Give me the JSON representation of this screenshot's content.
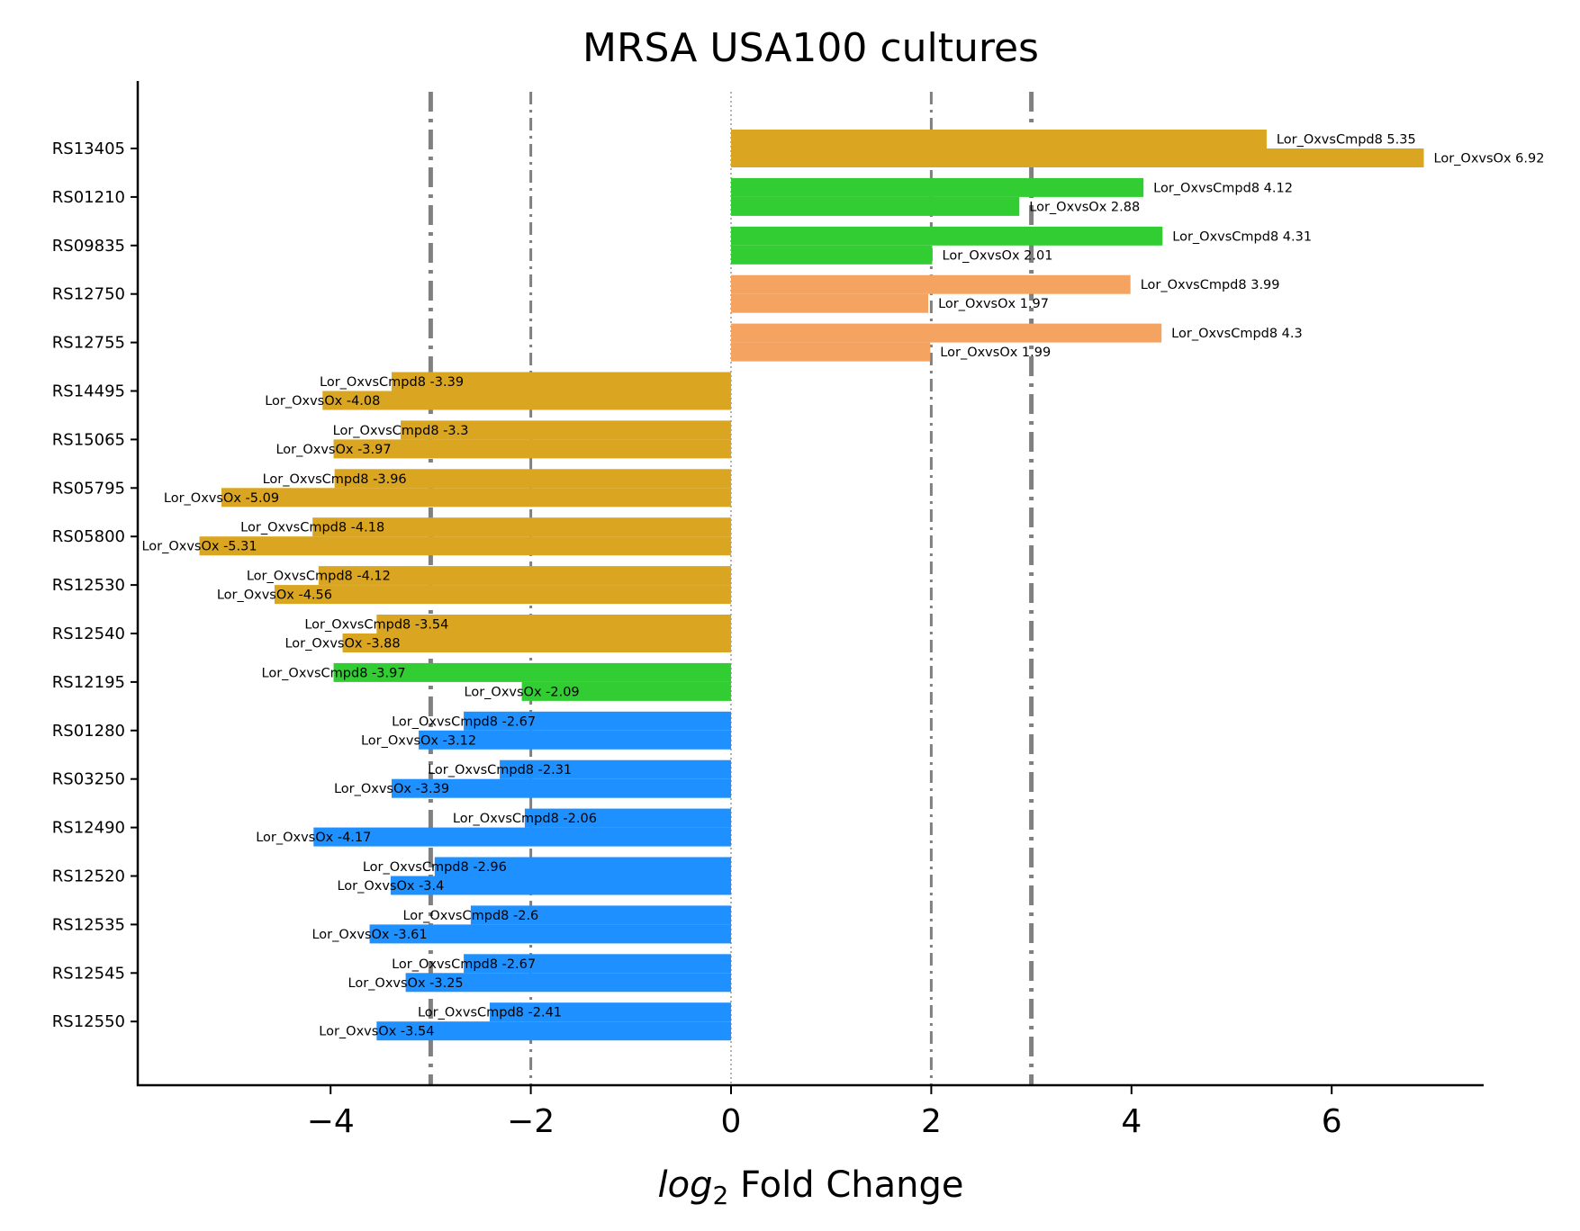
{
  "chart_data": {
    "type": "bar",
    "orientation": "horizontal",
    "title": "MRSA USA100 cultures",
    "xlabel_italic": "log",
    "xlabel_sub": "2",
    "xlabel_rest": " Fold Change",
    "xticks": [
      -4,
      -2,
      0,
      2,
      4,
      6
    ],
    "xtick_labels": [
      "−4",
      "−2",
      "0",
      "2",
      "4",
      "6"
    ],
    "xlim": [
      -5.9,
      7.5
    ],
    "reference_lines": [
      {
        "x": -3,
        "style": "thick-dashdot"
      },
      {
        "x": -2,
        "style": "thin-dashdot"
      },
      {
        "x": 0,
        "style": "dotted"
      },
      {
        "x": 2,
        "style": "thin-dashdot"
      },
      {
        "x": 3,
        "style": "thick-dashdot"
      }
    ],
    "categories": [
      {
        "name": "RS13405",
        "color": "#DAA520",
        "cmpd8": 5.35,
        "ox": 6.92
      },
      {
        "name": "RS01210",
        "color": "#32CD32",
        "cmpd8": 4.12,
        "ox": 2.88
      },
      {
        "name": "RS09835",
        "color": "#32CD32",
        "cmpd8": 4.31,
        "ox": 2.01
      },
      {
        "name": "RS12750",
        "color": "#F4A460",
        "cmpd8": 3.99,
        "ox": 1.97
      },
      {
        "name": "RS12755",
        "color": "#F4A460",
        "cmpd8": 4.3,
        "ox": 1.99
      },
      {
        "name": "RS14495",
        "color": "#DAA520",
        "cmpd8": -3.39,
        "ox": -4.08
      },
      {
        "name": "RS15065",
        "color": "#DAA520",
        "cmpd8": -3.3,
        "ox": -3.97
      },
      {
        "name": "RS05795",
        "color": "#DAA520",
        "cmpd8": -3.96,
        "ox": -5.09
      },
      {
        "name": "RS05800",
        "color": "#DAA520",
        "cmpd8": -4.18,
        "ox": -5.31
      },
      {
        "name": "RS12530",
        "color": "#DAA520",
        "cmpd8": -4.12,
        "ox": -4.56
      },
      {
        "name": "RS12540",
        "color": "#DAA520",
        "cmpd8": -3.54,
        "ox": -3.88
      },
      {
        "name": "RS12195",
        "color": "#32CD32",
        "cmpd8": -3.97,
        "ox": -2.09
      },
      {
        "name": "RS01280",
        "color": "#1E90FF",
        "cmpd8": -2.67,
        "ox": -3.12
      },
      {
        "name": "RS03250",
        "color": "#1E90FF",
        "cmpd8": -2.31,
        "ox": -3.39
      },
      {
        "name": "RS12490",
        "color": "#1E90FF",
        "cmpd8": -2.06,
        "ox": -4.17
      },
      {
        "name": "RS12520",
        "color": "#1E90FF",
        "cmpd8": -2.96,
        "ox": -3.4
      },
      {
        "name": "RS12535",
        "color": "#1E90FF",
        "cmpd8": -2.6,
        "ox": -3.61
      },
      {
        "name": "RS12545",
        "color": "#1E90FF",
        "cmpd8": -2.67,
        "ox": -3.25
      },
      {
        "name": "RS12550",
        "color": "#1E90FF",
        "cmpd8": -2.41,
        "ox": -3.54
      }
    ],
    "series_label_prefixes": {
      "cmpd8": "Lor_OxvsCmpd8 ",
      "ox": "Lor_OxvsOx "
    },
    "grid": false,
    "legend": "none"
  }
}
